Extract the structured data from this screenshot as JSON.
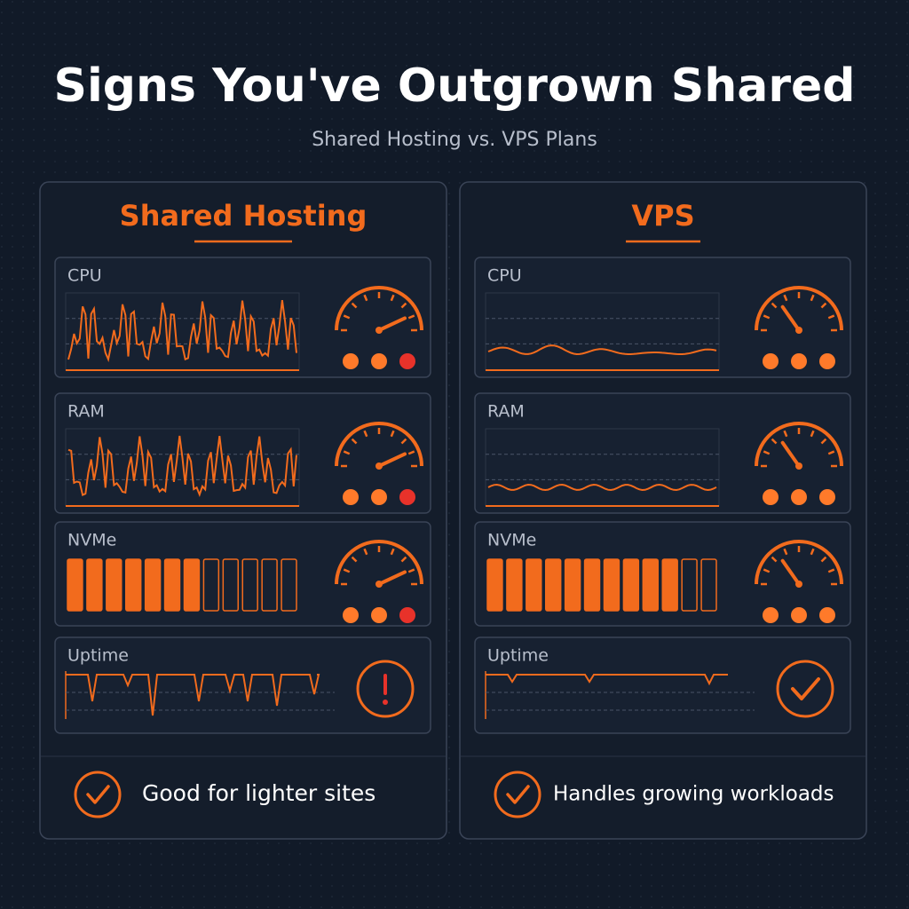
{
  "header": {
    "title": "Signs You've Outgrown Shared",
    "subtitle": "Shared Hosting vs. VPS Plans"
  },
  "panels": [
    {
      "heading": "Shared Hosting",
      "metrics": [
        "CPU",
        "RAM",
        "NVMe",
        "Uptime"
      ],
      "footer": "Good for lighter sites"
    },
    {
      "heading": "VPS",
      "metrics": [
        "CPU",
        "RAM",
        "NVMe",
        "Uptime"
      ],
      "footer": "Handles growing workloads"
    }
  ]
}
